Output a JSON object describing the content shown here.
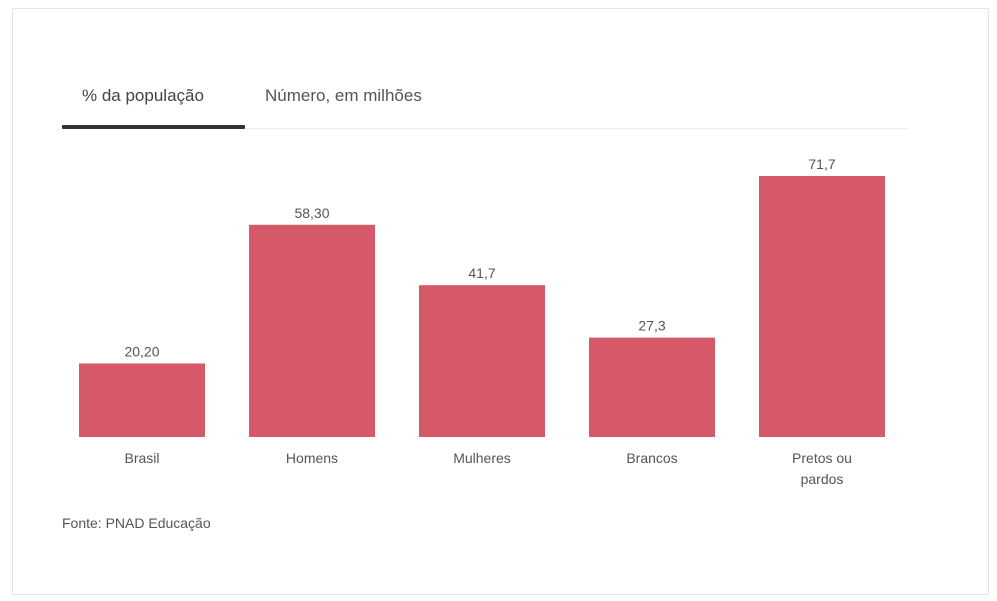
{
  "tabs": [
    {
      "label": "% da população",
      "active": true
    },
    {
      "label": "Número, em milhões",
      "active": false
    }
  ],
  "colors": {
    "bar": "#d55969",
    "tab_underline": "#333333"
  },
  "source": "Fonte: PNAD Educação",
  "chart_data": {
    "type": "bar",
    "categories": [
      "Brasil",
      "Homens",
      "Mulheres",
      "Brancos",
      "Pretos ou pardos"
    ],
    "category_lines": [
      [
        "Brasil"
      ],
      [
        "Homens"
      ],
      [
        "Mulheres"
      ],
      [
        "Brancos"
      ],
      [
        "Pretos ou",
        "pardos"
      ]
    ],
    "values": [
      20.2,
      58.3,
      41.7,
      27.3,
      71.7
    ],
    "value_labels": [
      "20,20",
      "58,30",
      "41,7",
      "27,3",
      "71,7"
    ],
    "title": "",
    "xlabel": "",
    "ylabel": "",
    "ylim": [
      0,
      71.7
    ],
    "grid": false,
    "legend": "none"
  }
}
